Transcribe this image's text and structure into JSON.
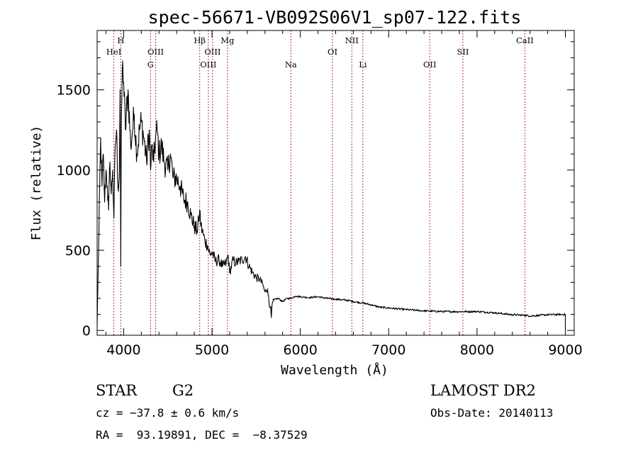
{
  "chart_data": {
    "type": "line",
    "title": "spec-56671-VB092S06V1_sp07-122.fits",
    "xlabel": "Wavelength (Å)",
    "ylabel": "Flux (relative)",
    "xlim": [
      3700,
      9100
    ],
    "ylim": [
      -30,
      1870
    ],
    "xticks": [
      4000,
      5000,
      6000,
      7000,
      8000,
      9000
    ],
    "yticks": [
      0,
      500,
      1000,
      1500
    ],
    "grid": false,
    "line_color": "#000000",
    "marker_color": "#8b0000",
    "spectral_lines": [
      {
        "label": "HeI",
        "wavelength": 3889,
        "row": 2
      },
      {
        "label": "H",
        "wavelength": 3968,
        "row": 1
      },
      {
        "label": "G",
        "wavelength": 4305,
        "row": 3
      },
      {
        "label": "OIII",
        "wavelength": 4363,
        "row": 2
      },
      {
        "label": "Hβ",
        "wavelength": 4861,
        "row": 1
      },
      {
        "label": "OIII",
        "wavelength": 4959,
        "row": 3
      },
      {
        "label": "OIII",
        "wavelength": 5007,
        "row": 2
      },
      {
        "label": "Mg",
        "wavelength": 5175,
        "row": 1
      },
      {
        "label": "Na",
        "wavelength": 5893,
        "row": 3
      },
      {
        "label": "OI",
        "wavelength": 6364,
        "row": 2
      },
      {
        "label": "NII",
        "wavelength": 6583,
        "row": 1
      },
      {
        "label": "Li",
        "wavelength": 6708,
        "row": 3
      },
      {
        "label": "OII",
        "wavelength": 7465,
        "row": 3
      },
      {
        "label": "SII",
        "wavelength": 7840,
        "row": 2
      },
      {
        "label": "CaII",
        "wavelength": 8542,
        "row": 1
      }
    ],
    "series": [
      {
        "x": [
          3700,
          3720,
          3740,
          3755,
          3770,
          3785,
          3800,
          3815,
          3830,
          3845,
          3860,
          3875,
          3890,
          3905,
          3920,
          3935,
          3950,
          3960,
          3968,
          3975,
          3990,
          4000,
          4020,
          4050,
          4080,
          4101,
          4120,
          4150,
          4180,
          4200,
          4230,
          4260,
          4290,
          4305,
          4320,
          4340,
          4360,
          4380,
          4400,
          4430,
          4460,
          4500,
          4530,
          4560,
          4600,
          4640,
          4680,
          4720,
          4760,
          4800,
          4830,
          4850,
          4861,
          4875,
          4900,
          4920,
          4950,
          4980,
          5000,
          5040,
          5080,
          5120,
          5160,
          5183,
          5200,
          5240,
          5270,
          5300,
          5340,
          5380,
          5420,
          5460,
          5500,
          5540,
          5570,
          5600,
          5630,
          5650,
          5665,
          5672,
          5680,
          5700,
          5750,
          5800,
          5850,
          5893,
          5950,
          6000,
          6100,
          6200,
          6300,
          6400,
          6500,
          6563,
          6600,
          6700,
          6800,
          6900,
          7000,
          7200,
          7400,
          7600,
          7800,
          8000,
          8200,
          8400,
          8542,
          8600,
          8800,
          9000
        ],
        "y": [
          30,
          600,
          1200,
          900,
          1100,
          800,
          1000,
          900,
          750,
          1050,
          850,
          1000,
          700,
          1150,
          1250,
          900,
          950,
          1500,
          400,
          1350,
          1680,
          1550,
          1250,
          1500,
          1150,
          1250,
          1350,
          1100,
          1250,
          1300,
          1200,
          1050,
          1250,
          1000,
          1150,
          1050,
          1200,
          1250,
          1100,
          1150,
          1050,
          1000,
          1100,
          950,
          950,
          900,
          820,
          800,
          720,
          650,
          620,
          680,
          750,
          650,
          600,
          560,
          530,
          470,
          490,
          430,
          440,
          400,
          420,
          470,
          360,
          440,
          420,
          430,
          440,
          460,
          400,
          360,
          330,
          320,
          290,
          240,
          260,
          150,
          150,
          80,
          160,
          190,
          200,
          180,
          200,
          200,
          215,
          210,
          205,
          210,
          200,
          195,
          190,
          185,
          180,
          172,
          160,
          145,
          140,
          130,
          122,
          118,
          117,
          118,
          110,
          98,
          95,
          90,
          98,
          100
        ]
      }
    ]
  },
  "info": {
    "class_label": "STAR",
    "subclass_label": "G2",
    "survey": "LAMOST DR2",
    "cz": "cz = −37.8 ± 0.6 km/s",
    "obs_date": "Obs-Date: 20140113",
    "coords": "RA =  93.19891, DEC =  −8.37529"
  }
}
